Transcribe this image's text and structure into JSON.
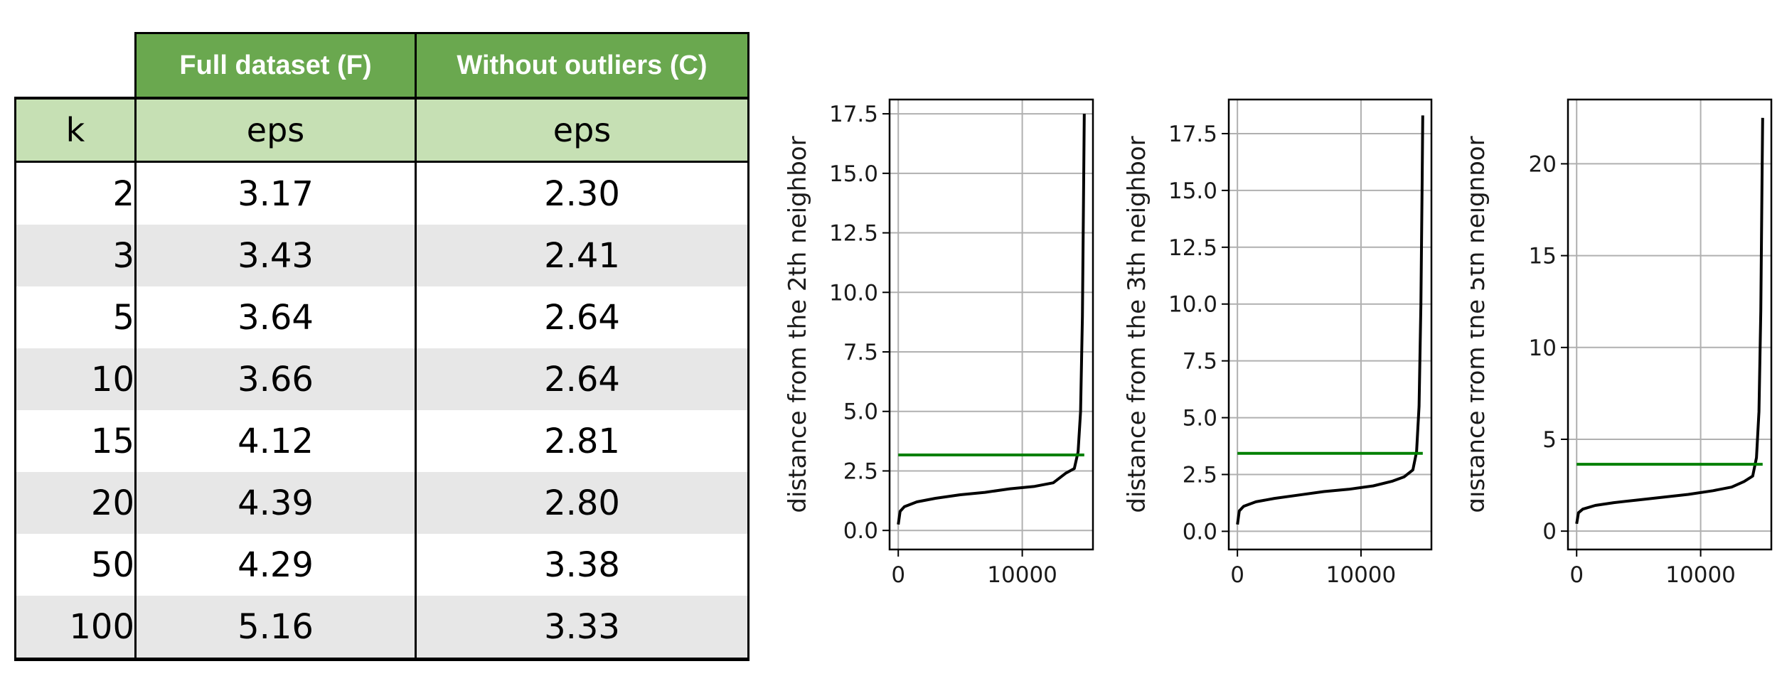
{
  "table": {
    "group_headers": {
      "full": "Full dataset (F)",
      "without": "Without outliers (C)"
    },
    "sub_headers": {
      "k": "k",
      "eps_full": "eps",
      "eps_without": "eps"
    },
    "rows": [
      {
        "k": "2",
        "full": "3.17",
        "without": "2.30"
      },
      {
        "k": "3",
        "full": "3.43",
        "without": "2.41"
      },
      {
        "k": "5",
        "full": "3.64",
        "without": "2.64"
      },
      {
        "k": "10",
        "full": "3.66",
        "without": "2.64"
      },
      {
        "k": "15",
        "full": "4.12",
        "without": "2.81"
      },
      {
        "k": "20",
        "full": "4.39",
        "without": "2.80"
      },
      {
        "k": "50",
        "full": "4.29",
        "without": "3.38"
      },
      {
        "k": "100",
        "full": "5.16",
        "without": "3.33"
      }
    ]
  },
  "chart_data": [
    {
      "type": "line",
      "title": "",
      "xlabel": "",
      "ylabel": "distance from the 2th neighbor",
      "xlim": [
        -700,
        15700
      ],
      "ylim": [
        -0.8,
        18.1
      ],
      "x_ticks": [
        0,
        10000
      ],
      "x_tick_labels": [
        "0",
        "10000"
      ],
      "y_ticks": [
        0,
        2.5,
        5,
        7.5,
        10,
        12.5,
        15,
        17.5
      ],
      "y_tick_labels": [
        "0.0",
        "2.5",
        "5.0",
        "7.5",
        "10.0",
        "12.5",
        "15.0",
        "17.5"
      ],
      "grid": true,
      "series": [
        {
          "color": "#000000",
          "x": [
            0,
            150,
            500,
            1500,
            3000,
            5000,
            7000,
            9000,
            11000,
            12500,
            13500,
            14200,
            14500,
            14700,
            14850,
            14950,
            15000
          ],
          "y": [
            0.25,
            0.8,
            1.0,
            1.2,
            1.35,
            1.5,
            1.6,
            1.75,
            1.85,
            2.0,
            2.4,
            2.6,
            3.3,
            5.0,
            9.0,
            14.5,
            17.5
          ]
        }
      ],
      "hlines": [
        {
          "y": 3.17,
          "x": [
            0,
            15000
          ],
          "color": "#008000"
        }
      ]
    },
    {
      "type": "line",
      "title": "",
      "xlabel": "",
      "ylabel": "distance from the 3th neighbor",
      "xlim": [
        -700,
        15700
      ],
      "ylim": [
        -0.8,
        19.0
      ],
      "x_ticks": [
        0,
        10000
      ],
      "x_tick_labels": [
        "0",
        "10000"
      ],
      "y_ticks": [
        0,
        2.5,
        5,
        7.5,
        10,
        12.5,
        15,
        17.5
      ],
      "y_tick_labels": [
        "0.0",
        "2.5",
        "5.0",
        "7.5",
        "10.0",
        "12.5",
        "15.0",
        "17.5"
      ],
      "grid": true,
      "series": [
        {
          "color": "#000000",
          "x": [
            0,
            150,
            500,
            1500,
            3000,
            5000,
            7000,
            9000,
            11000,
            12500,
            13500,
            14200,
            14500,
            14700,
            14850,
            14950,
            15000
          ],
          "y": [
            0.3,
            0.9,
            1.1,
            1.3,
            1.45,
            1.6,
            1.75,
            1.85,
            2.0,
            2.2,
            2.4,
            2.7,
            3.5,
            5.5,
            10.0,
            15.5,
            18.3
          ]
        }
      ],
      "hlines": [
        {
          "y": 3.43,
          "x": [
            0,
            15000
          ],
          "color": "#008000"
        }
      ]
    },
    {
      "type": "line",
      "title": "",
      "xlabel": "",
      "ylabel": "distance from the 5th neighbor",
      "xlim": [
        -700,
        15700
      ],
      "ylim": [
        -1.0,
        23.5
      ],
      "x_ticks": [
        0,
        10000
      ],
      "x_tick_labels": [
        "0",
        "10000"
      ],
      "y_ticks": [
        0,
        5,
        10,
        15,
        20
      ],
      "y_tick_labels": [
        "0",
        "5",
        "10",
        "15",
        "20"
      ],
      "grid": true,
      "series": [
        {
          "color": "#000000",
          "x": [
            0,
            150,
            500,
            1500,
            3000,
            5000,
            7000,
            9000,
            11000,
            12500,
            13500,
            14200,
            14500,
            14700,
            14850,
            14950,
            15000
          ],
          "y": [
            0.4,
            1.0,
            1.2,
            1.4,
            1.55,
            1.7,
            1.85,
            2.0,
            2.2,
            2.4,
            2.7,
            3.0,
            4.0,
            6.5,
            12.0,
            19.0,
            22.5
          ]
        }
      ],
      "hlines": [
        {
          "y": 3.64,
          "x": [
            0,
            15000
          ],
          "color": "#008000"
        }
      ]
    }
  ]
}
